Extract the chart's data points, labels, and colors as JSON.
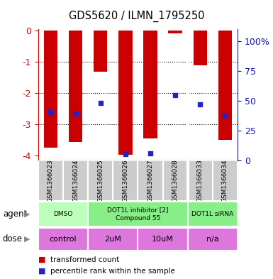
{
  "title": "GDS5620 / ILMN_1795250",
  "samples": [
    "GSM1366023",
    "GSM1366024",
    "GSM1366025",
    "GSM1366026",
    "GSM1366027",
    "GSM1366028",
    "GSM1366033",
    "GSM1366034"
  ],
  "bar_tops": [
    0,
    0,
    0,
    0,
    0,
    0,
    0,
    0
  ],
  "bar_bottoms": [
    -3.75,
    -3.55,
    -1.3,
    -3.97,
    -3.45,
    -0.07,
    -1.1,
    -3.5
  ],
  "dot_values": [
    -2.6,
    -2.65,
    -2.3,
    -3.95,
    -3.92,
    -2.05,
    -2.35,
    -2.72
  ],
  "ylim_left": [
    -4.15,
    0.05
  ],
  "ylim_right": [
    0,
    110
  ],
  "yticks_left": [
    0,
    -1,
    -2,
    -3,
    -4
  ],
  "ytick_labels_left": [
    "0",
    "-1",
    "-2",
    "-3",
    "-4"
  ],
  "yticks_right_vals": [
    0,
    25,
    50,
    75,
    100
  ],
  "ytick_labels_right": [
    "0",
    "25",
    "50",
    "75",
    "100%"
  ],
  "bar_color": "#cc0000",
  "dot_color": "#2222cc",
  "bar_width": 0.55,
  "tick_color_left": "#cc0000",
  "tick_color_right": "#1111aa",
  "agent_groups": [
    {
      "label": "DMSO",
      "start": 0,
      "end": 2,
      "color": "#bbffbb"
    },
    {
      "label": "DOT1L inhibitor [2]\nCompound 55",
      "start": 2,
      "end": 6,
      "color": "#88ee88"
    },
    {
      "label": "DOT1L siRNA",
      "start": 6,
      "end": 8,
      "color": "#88ee88"
    }
  ],
  "dose_groups": [
    {
      "label": "control",
      "start": 0,
      "end": 2
    },
    {
      "label": "2uM",
      "start": 2,
      "end": 4
    },
    {
      "label": "10uM",
      "start": 4,
      "end": 6
    },
    {
      "label": "n/a",
      "start": 6,
      "end": 8
    }
  ],
  "dose_color": "#dd77dd",
  "sample_bg_color": "#cccccc",
  "legend_labels": [
    "transformed count",
    "percentile rank within the sample"
  ],
  "legend_colors": [
    "#cc0000",
    "#2222cc"
  ],
  "agent_label": "agent",
  "dose_label": "dose",
  "separator_after_idx": 5
}
